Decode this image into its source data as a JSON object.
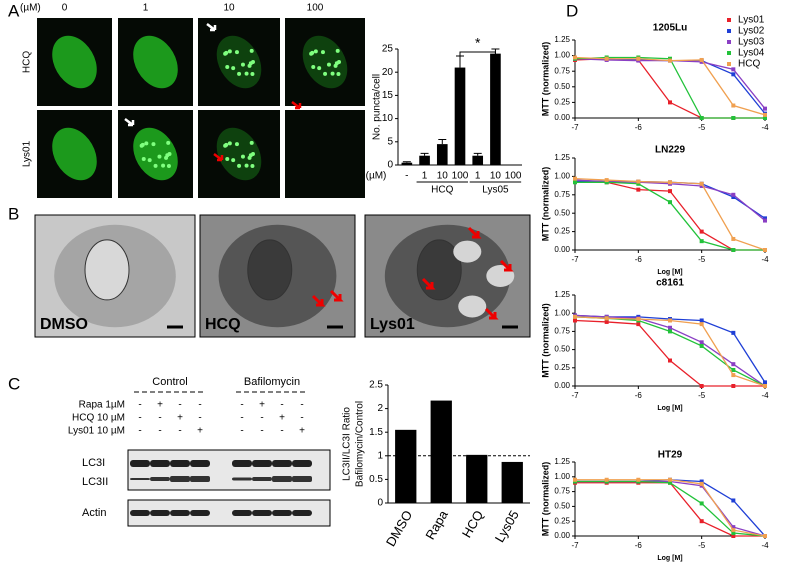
{
  "panel_labels": [
    "A",
    "B",
    "C",
    "D"
  ],
  "panel_a": {
    "unit": "(µM)",
    "concentrations": [
      "0",
      "1",
      "10",
      "100"
    ],
    "rows": [
      "HCQ",
      "Lys01"
    ]
  },
  "panel_b": {
    "labels": [
      "DMSO",
      "HCQ",
      "Lys01"
    ]
  },
  "panel_c": {
    "groups": [
      "Control",
      "Bafilomycin"
    ],
    "treatments": [
      {
        "name": "Rapa 1µM",
        "signs": [
          "-",
          "+",
          "-",
          "-",
          "-",
          "+",
          "-",
          "-"
        ]
      },
      {
        "name": "HCQ 10 µM",
        "signs": [
          "-",
          "-",
          "+",
          "-",
          "-",
          "-",
          "+",
          "-"
        ]
      },
      {
        "name": "Lys01 10 µM",
        "signs": [
          "-",
          "-",
          "-",
          "+",
          "-",
          "-",
          "-",
          "+"
        ]
      }
    ],
    "bands": [
      "LC3I",
      "LC3II",
      "Actin"
    ]
  },
  "chart_data": [
    {
      "type": "bar",
      "ylabel": "No. puncta/cell",
      "x_unit": "(µM)",
      "categories": [
        "-",
        "1",
        "10",
        "100",
        "1",
        "10",
        "100"
      ],
      "groups": [
        "HCQ",
        "Lys05"
      ],
      "values": [
        0.5,
        2,
        4.5,
        21,
        2,
        24,
        null
      ],
      "errors": [
        0.2,
        0.5,
        1,
        2.5,
        0.5,
        1,
        null
      ],
      "color": "#000000",
      "ylim": [
        0,
        25
      ],
      "yticks": [
        0,
        5,
        10,
        15,
        20,
        25
      ],
      "annotation": "*"
    },
    {
      "type": "bar",
      "ylabel": "LC3II/LC3I Ratio",
      "ylabel2": "Bafilomycin/Control",
      "categories": [
        "DMSO",
        "Rapa",
        "HCQ",
        "Lys05"
      ],
      "values": [
        1.55,
        2.17,
        1.02,
        0.87
      ],
      "color": "#000000",
      "ylim": [
        0,
        2.5
      ],
      "yticks": [
        0,
        0.5,
        1,
        1.5,
        2,
        2.5
      ],
      "ref_line": 1
    },
    {
      "type": "line",
      "title": "1205Lu",
      "ylabel": "MTT (normalized)",
      "legend": "upper right",
      "x": [
        -7,
        -6.5,
        -6,
        -5.5,
        -5,
        -4.5,
        -4
      ],
      "xlim": [
        -7,
        -4
      ],
      "xticks": [
        -7,
        -6,
        -5,
        -4
      ],
      "ylim": [
        0,
        1.25
      ],
      "yticks": [
        {
          "value": 0,
          "label": "0.00"
        },
        {
          "value": 0.25,
          "label": "0.25"
        },
        {
          "value": 0.5,
          "label": "0.50"
        },
        {
          "value": 0.75,
          "label": "0.75"
        },
        {
          "value": 1,
          "label": "1.00"
        },
        {
          "value": 1.25,
          "label": "1.25"
        }
      ],
      "series": [
        {
          "name": "Lys01",
          "color": "#e8202a",
          "values": [
            0.93,
            0.95,
            0.93,
            0.25,
            0,
            0,
            0
          ]
        },
        {
          "name": "Lys02",
          "color": "#1f3fd6",
          "values": [
            0.95,
            0.95,
            0.93,
            0.92,
            0.92,
            0.7,
            0.07
          ]
        },
        {
          "name": "Lys03",
          "color": "#8a3fc4",
          "values": [
            0.95,
            0.93,
            0.92,
            0.92,
            0.9,
            0.78,
            0.15
          ]
        },
        {
          "name": "Lys04",
          "color": "#22c23a",
          "values": [
            0.95,
            0.97,
            0.97,
            0.95,
            0,
            0,
            0
          ]
        },
        {
          "name": "HCQ",
          "color": "#f0a050",
          "values": [
            0.97,
            0.95,
            0.95,
            0.92,
            0.93,
            0.2,
            0.05
          ]
        }
      ]
    },
    {
      "type": "line",
      "title": "LN229",
      "xlabel": "Log [M]",
      "ylabel": "MTT (normalized)",
      "x": [
        -7,
        -6.5,
        -6,
        -5.5,
        -5,
        -4.5,
        -4
      ],
      "xlim": [
        -7,
        -4
      ],
      "xticks": [
        -7,
        -6,
        -5,
        -4
      ],
      "ylim": [
        0,
        1.25
      ],
      "yticks": [
        {
          "value": 0,
          "label": "0.00"
        },
        {
          "value": 0.25,
          "label": "0.25"
        },
        {
          "value": 0.5,
          "label": "0.50"
        },
        {
          "value": 0.75,
          "label": "0.75"
        },
        {
          "value": 1,
          "label": "1.00"
        },
        {
          "value": 1.25,
          "label": "1.25"
        }
      ],
      "series": [
        {
          "color": "#e8202a",
          "values": [
            0.93,
            0.92,
            0.82,
            0.8,
            0.25,
            0,
            0
          ]
        },
        {
          "color": "#1f3fd6",
          "values": [
            0.93,
            0.93,
            0.93,
            0.92,
            0.9,
            0.72,
            0.43
          ]
        },
        {
          "color": "#8a3fc4",
          "values": [
            0.95,
            0.93,
            0.92,
            0.9,
            0.87,
            0.75,
            0.4
          ]
        },
        {
          "color": "#22c23a",
          "values": [
            0.92,
            0.92,
            0.9,
            0.65,
            0.12,
            0,
            0
          ]
        },
        {
          "color": "#f0a050",
          "values": [
            0.97,
            0.95,
            0.93,
            0.92,
            0.9,
            0.15,
            0
          ]
        }
      ]
    },
    {
      "type": "line",
      "title": "c8161",
      "xlabel": "Log [M]",
      "ylabel": "MTT (normalized)",
      "x": [
        -7,
        -6.5,
        -6,
        -5.5,
        -5,
        -4.5,
        -4
      ],
      "xlim": [
        -7,
        -4
      ],
      "xticks": [
        -7,
        -6,
        -5,
        -4
      ],
      "ylim": [
        0,
        1.25
      ],
      "yticks": [
        {
          "value": 0,
          "label": "0.00"
        },
        {
          "value": 0.25,
          "label": "0.25"
        },
        {
          "value": 0.5,
          "label": "0.50"
        },
        {
          "value": 0.75,
          "label": "0.75"
        },
        {
          "value": 1,
          "label": "1.00"
        },
        {
          "value": 1.25,
          "label": "1.25"
        }
      ],
      "series": [
        {
          "color": "#e8202a",
          "values": [
            0.9,
            0.88,
            0.85,
            0.35,
            0,
            0,
            0
          ]
        },
        {
          "color": "#1f3fd6",
          "values": [
            0.97,
            0.95,
            0.95,
            0.92,
            0.9,
            0.73,
            0.05
          ]
        },
        {
          "color": "#8a3fc4",
          "values": [
            0.97,
            0.95,
            0.93,
            0.8,
            0.6,
            0.3,
            0
          ]
        },
        {
          "color": "#22c23a",
          "values": [
            0.95,
            0.93,
            0.9,
            0.75,
            0.55,
            0.22,
            0
          ]
        },
        {
          "color": "#f0a050",
          "values": [
            0.95,
            0.93,
            0.92,
            0.9,
            0.85,
            0.15,
            0
          ]
        }
      ]
    },
    {
      "type": "line",
      "title": "HT29",
      "xlabel": "Log [M]",
      "ylabel": "MTT (normalized)",
      "x": [
        -7,
        -6.5,
        -6,
        -5.5,
        -5,
        -4.5,
        -4
      ],
      "xlim": [
        -7,
        -4
      ],
      "xticks": [
        -7,
        -6,
        -5,
        -4
      ],
      "ylim": [
        0,
        1.25
      ],
      "yticks": [
        {
          "value": 0,
          "label": "0.00"
        },
        {
          "value": 0.25,
          "label": "0.25"
        },
        {
          "value": 0.5,
          "label": "0.50"
        },
        {
          "value": 0.75,
          "label": "0.75"
        },
        {
          "value": 1,
          "label": "1.00"
        },
        {
          "value": 1.25,
          "label": "1.25"
        }
      ],
      "series": [
        {
          "color": "#e8202a",
          "values": [
            0.9,
            0.9,
            0.9,
            0.9,
            0.25,
            0,
            0
          ]
        },
        {
          "color": "#1f3fd6",
          "values": [
            0.92,
            0.92,
            0.92,
            0.95,
            0.92,
            0.6,
            0
          ]
        },
        {
          "color": "#8a3fc4",
          "values": [
            0.92,
            0.92,
            0.92,
            0.92,
            0.85,
            0.15,
            0
          ]
        },
        {
          "color": "#22c23a",
          "values": [
            0.92,
            0.92,
            0.92,
            0.9,
            0.55,
            0.05,
            0
          ]
        },
        {
          "color": "#f0a050",
          "values": [
            0.95,
            0.95,
            0.95,
            0.95,
            0.88,
            0.1,
            0
          ]
        }
      ]
    }
  ]
}
